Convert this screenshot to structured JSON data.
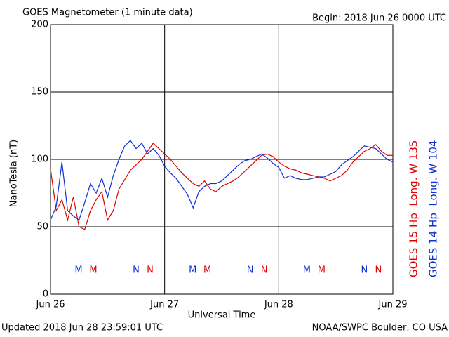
{
  "chart_data": {
    "type": "line",
    "title": "GOES Magnetometer (1 minute data)",
    "subtitle": "Begin:  2018 Jun 26 0000 UTC",
    "y_label": "NanoTesla (nT)",
    "x_label": "Universal Time",
    "footer_left": "Updated 2018 Jun 28 23:59:01 UTC",
    "footer_right": "NOAA/SWPC Boulder, CO USA",
    "xlim": [
      0,
      3
    ],
    "xticks": [
      {
        "value": 0,
        "label": "Jun 26"
      },
      {
        "value": 1,
        "label": "Jun 27"
      },
      {
        "value": 2,
        "label": "Jun 28"
      },
      {
        "value": 3,
        "label": "Jun 29"
      }
    ],
    "ylim": [
      0,
      200
    ],
    "yticks": [
      0,
      50,
      100,
      150,
      200
    ],
    "grid": true,
    "x": [
      0,
      0.05,
      0.1,
      0.15,
      0.2,
      0.25,
      0.3,
      0.35,
      0.4,
      0.45,
      0.5,
      0.55,
      0.6,
      0.65,
      0.7,
      0.75,
      0.8,
      0.85,
      0.9,
      0.95,
      1,
      1.05,
      1.1,
      1.15,
      1.2,
      1.25,
      1.3,
      1.35,
      1.4,
      1.45,
      1.5,
      1.55,
      1.6,
      1.65,
      1.7,
      1.75,
      1.8,
      1.85,
      1.9,
      1.95,
      2,
      2.05,
      2.1,
      2.15,
      2.2,
      2.25,
      2.3,
      2.35,
      2.4,
      2.45,
      2.5,
      2.55,
      2.6,
      2.65,
      2.7,
      2.75,
      2.8,
      2.85,
      2.9,
      2.95,
      3
    ],
    "series": [
      {
        "name": "GOES 15 Hp  Long. W 135",
        "color": "#e00000",
        "values": [
          93,
          62,
          70,
          55,
          72,
          50,
          48,
          62,
          70,
          76,
          55,
          62,
          78,
          85,
          92,
          96,
          100,
          106,
          112,
          108,
          104,
          100,
          95,
          90,
          86,
          82,
          80,
          84,
          78,
          76,
          80,
          82,
          84,
          87,
          91,
          95,
          99,
          103,
          104,
          102,
          98,
          95,
          93,
          92,
          90,
          89,
          88,
          87,
          86,
          84,
          86,
          88,
          92,
          98,
          102,
          106,
          108,
          111,
          106,
          103,
          103
        ]
      },
      {
        "name": "GOES 14 Hp  Long. W 104",
        "color": "#1030d0",
        "values": [
          55,
          65,
          98,
          62,
          58,
          55,
          68,
          82,
          75,
          86,
          72,
          88,
          100,
          110,
          114,
          108,
          112,
          104,
          108,
          103,
          95,
          90,
          86,
          80,
          74,
          64,
          76,
          80,
          82,
          82,
          84,
          88,
          92,
          96,
          99,
          100,
          102,
          104,
          101,
          97,
          94,
          86,
          88,
          86,
          85,
          85,
          86,
          87,
          87,
          89,
          91,
          96,
          99,
          102,
          106,
          110,
          109,
          108,
          104,
          100,
          98
        ]
      }
    ],
    "markers": [
      {
        "text": "M",
        "x": 0.246,
        "color": "#1030d0"
      },
      {
        "text": "M",
        "x": 0.375,
        "color": "#e00000"
      },
      {
        "text": "N",
        "x": 0.75,
        "color": "#1030d0"
      },
      {
        "text": "N",
        "x": 0.873,
        "color": "#e00000"
      },
      {
        "text": "M",
        "x": 1.246,
        "color": "#1030d0"
      },
      {
        "text": "M",
        "x": 1.375,
        "color": "#e00000"
      },
      {
        "text": "N",
        "x": 1.75,
        "color": "#1030d0"
      },
      {
        "text": "N",
        "x": 1.873,
        "color": "#e00000"
      },
      {
        "text": "M",
        "x": 2.246,
        "color": "#1030d0"
      },
      {
        "text": "M",
        "x": 2.375,
        "color": "#e00000"
      },
      {
        "text": "N",
        "x": 2.75,
        "color": "#1030d0"
      },
      {
        "text": "N",
        "x": 2.873,
        "color": "#e00000"
      }
    ]
  }
}
